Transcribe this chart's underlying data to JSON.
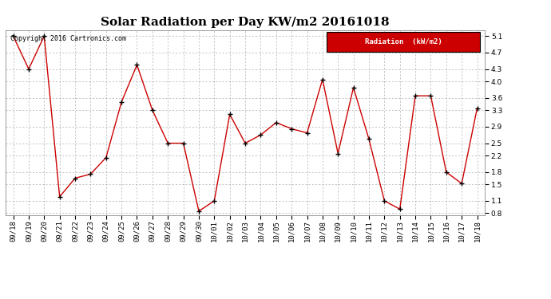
{
  "title": "Solar Radiation per Day KW/m2 20161018",
  "copyright_text": "Copyright 2016 Cartronics.com",
  "legend_label": "Radiation  (kW/m2)",
  "dates": [
    "09/18",
    "09/19",
    "09/20",
    "09/21",
    "09/22",
    "09/23",
    "09/24",
    "09/25",
    "09/26",
    "09/27",
    "09/28",
    "09/29",
    "09/30",
    "10/01",
    "10/02",
    "10/03",
    "10/04",
    "10/05",
    "10/06",
    "10/07",
    "10/08",
    "10/09",
    "10/10",
    "10/11",
    "10/12",
    "10/13",
    "10/14",
    "10/15",
    "10/16",
    "10/17",
    "10/18"
  ],
  "values": [
    5.1,
    4.3,
    5.1,
    1.2,
    1.65,
    1.75,
    2.15,
    3.5,
    4.4,
    3.3,
    2.5,
    2.5,
    0.85,
    1.1,
    3.2,
    2.5,
    2.7,
    3.0,
    2.85,
    2.75,
    4.05,
    2.25,
    3.85,
    2.6,
    1.1,
    0.9,
    3.65,
    3.65,
    1.8,
    1.52,
    3.35
  ],
  "line_color": "#cc0000",
  "marker_color": "#000000",
  "background_color": "#ffffff",
  "grid_color": "#aaaaaa",
  "ylim_min": 0.75,
  "ylim_max": 5.25,
  "yticks": [
    0.8,
    1.1,
    1.5,
    1.8,
    2.2,
    2.5,
    2.9,
    3.3,
    3.6,
    4.0,
    4.3,
    4.7,
    5.1
  ],
  "legend_bg": "#cc0000",
  "legend_text_color": "#ffffff",
  "title_fontsize": 11,
  "tick_fontsize": 6.5,
  "copyright_fontsize": 6,
  "legend_fontsize": 6.5
}
